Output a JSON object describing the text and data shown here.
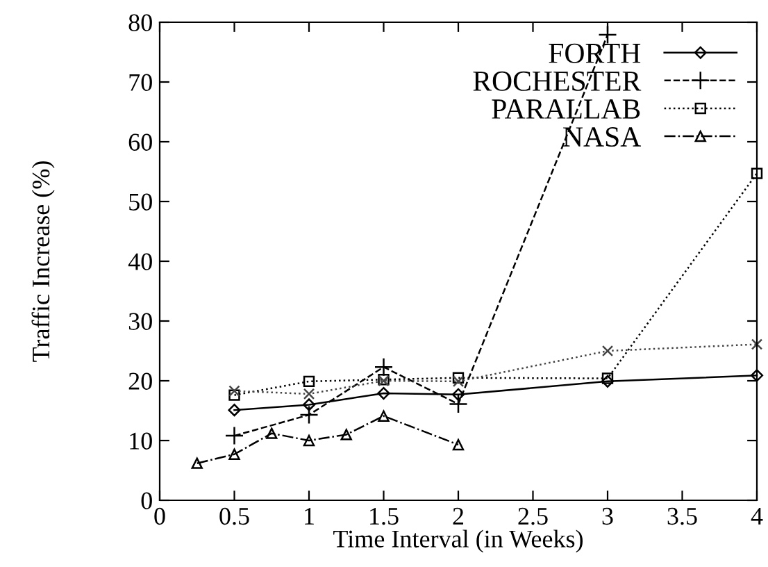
{
  "chart_data": {
    "type": "line",
    "xlabel": "Time Interval (in Weeks)",
    "ylabel": "Traffic Increase (%)",
    "xlim": [
      0,
      4
    ],
    "ylim": [
      0,
      80
    ],
    "xticks": [
      0,
      0.5,
      1,
      1.5,
      2,
      2.5,
      3,
      3.5,
      4
    ],
    "yticks": [
      0,
      10,
      20,
      30,
      40,
      50,
      60,
      70,
      80
    ],
    "grid": false,
    "legend": "top right",
    "series": [
      {
        "name": "FORTH",
        "color": "#000000",
        "marker": "diamond",
        "line_style": "solid",
        "x": [
          0.5,
          1,
          1.5,
          2,
          3,
          4
        ],
        "values": [
          15.1,
          16.0,
          17.9,
          17.7,
          19.9,
          20.9
        ]
      },
      {
        "name": "ROCHESTER",
        "color": "#000000",
        "marker": "cross",
        "line_style": "dashed",
        "x": [
          0.5,
          1,
          1.5,
          2,
          3
        ],
        "values": [
          10.8,
          14.3,
          22.3,
          16.1,
          77.9
        ]
      },
      {
        "name": "PARALLAB",
        "color": "#000000",
        "marker": "square",
        "line_style": "dotted",
        "x": [
          0.5,
          1,
          1.5,
          2,
          3,
          4
        ],
        "values": [
          17.6,
          19.9,
          20.2,
          20.5,
          20.4,
          54.7
        ]
      },
      {
        "color": "#444444",
        "marker": "x",
        "line_style": "dotted",
        "x": [
          0.5,
          1,
          1.5,
          2,
          3,
          4
        ],
        "values": [
          18.3,
          17.8,
          20.0,
          19.9,
          25.0,
          26.1
        ]
      },
      {
        "name": "NASA",
        "color": "#000000",
        "marker": "triangle",
        "line_style": "dashdot",
        "x": [
          0.25,
          0.5,
          0.75,
          1,
          1.25,
          1.5,
          2
        ],
        "values": [
          6.2,
          7.7,
          11.2,
          10.0,
          11.0,
          14.1,
          9.3
        ]
      }
    ]
  }
}
